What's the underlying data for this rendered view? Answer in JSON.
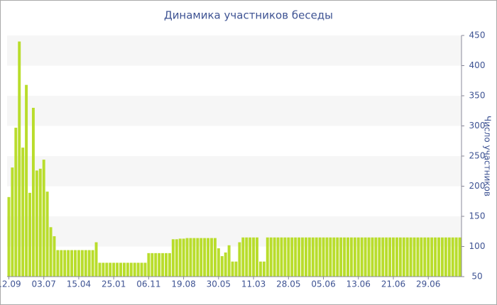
{
  "chart_data": {
    "type": "bar",
    "title": "Динамика участников беседы",
    "y_label": "Число участников",
    "categories": [
      "12.09",
      null,
      null,
      null,
      null,
      null,
      null,
      null,
      null,
      null,
      "03.07",
      null,
      null,
      null,
      null,
      null,
      null,
      null,
      null,
      null,
      "15.04",
      null,
      null,
      null,
      null,
      null,
      null,
      null,
      null,
      null,
      "25.01",
      null,
      null,
      null,
      null,
      null,
      null,
      null,
      null,
      null,
      "06.11",
      null,
      null,
      null,
      null,
      null,
      null,
      null,
      null,
      null,
      "19.08",
      null,
      null,
      null,
      null,
      null,
      null,
      null,
      null,
      null,
      "30.05",
      null,
      null,
      null,
      null,
      null,
      null,
      null,
      null,
      null,
      "11.03",
      null,
      null,
      null,
      null,
      null,
      null,
      null,
      null,
      null,
      "28.05",
      null,
      null,
      null,
      null,
      null,
      null,
      null,
      null,
      null,
      "05.06",
      null,
      null,
      null,
      null,
      null,
      null,
      null,
      null,
      null,
      "13.06",
      null,
      null,
      null,
      null,
      null,
      null,
      null,
      null,
      null,
      "21.06",
      null,
      null,
      null,
      null,
      null,
      null,
      null,
      null,
      null,
      "29.06",
      null,
      null,
      null,
      null,
      null,
      null,
      null,
      null,
      null
    ],
    "values": [
      182,
      231,
      297,
      440,
      264,
      368,
      189,
      330,
      226,
      229,
      244,
      191,
      132,
      117,
      94,
      94,
      94,
      94,
      94,
      94,
      94,
      94,
      94,
      94,
      94,
      107,
      73,
      73,
      73,
      73,
      73,
      73,
      73,
      73,
      73,
      73,
      73,
      73,
      73,
      73,
      89,
      89,
      89,
      89,
      89,
      89,
      89,
      112,
      112,
      113,
      113,
      114,
      114,
      114,
      114,
      114,
      114,
      114,
      114,
      114,
      97,
      84,
      90,
      102,
      75,
      75,
      107,
      115,
      115,
      115,
      115,
      115,
      75,
      75,
      115,
      115,
      115,
      115,
      115,
      115,
      115,
      115,
      115,
      115,
      115,
      115,
      115,
      115,
      115,
      115,
      115,
      115,
      115,
      115,
      115,
      115,
      115,
      115,
      115,
      115,
      115,
      115,
      115,
      115,
      115,
      115,
      115,
      115,
      115,
      115,
      115,
      115,
      115,
      115,
      115,
      115,
      115,
      115,
      115,
      115,
      115,
      115,
      115,
      115,
      115,
      115,
      115,
      115,
      115,
      115
    ],
    "color": "#b9dd2c",
    "ylim": [
      50,
      450
    ],
    "yticks": [
      50,
      100,
      150,
      200,
      250,
      300,
      350,
      400,
      450
    ],
    "grid": true,
    "y_axis_side": "right"
  }
}
